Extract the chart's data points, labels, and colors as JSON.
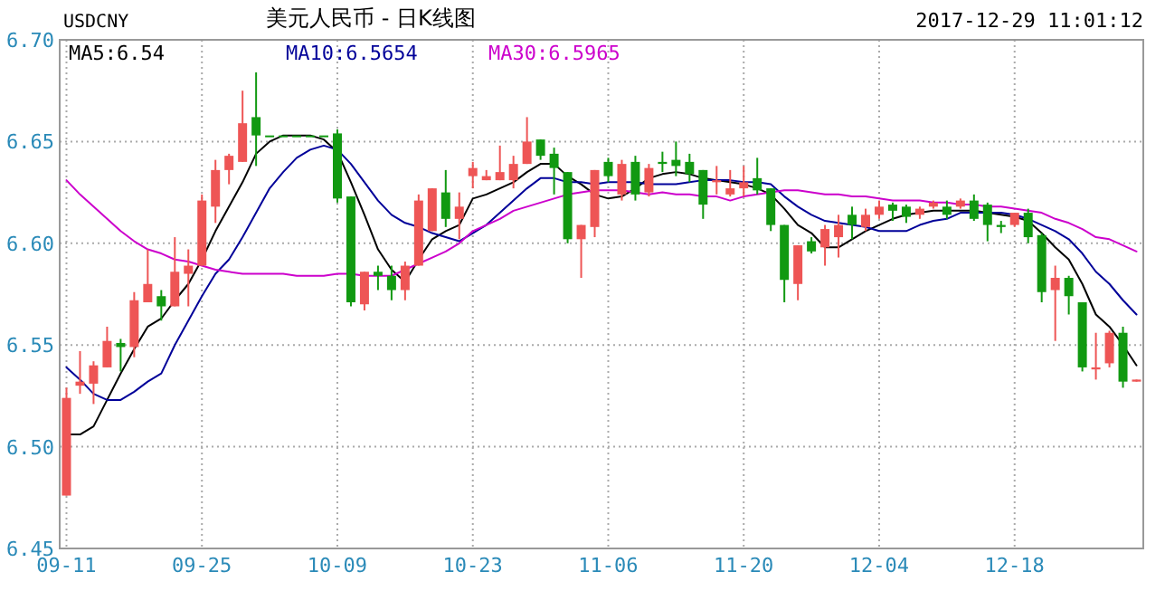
{
  "chart_data": {
    "type": "candlestick",
    "title": "美元人民币 - 日K线图",
    "annotations": [
      "USDCNY",
      "2017-12-29 11:01:12"
    ],
    "categories": [
      "09-11",
      null,
      null,
      null,
      null,
      null,
      null,
      null,
      null,
      null,
      "09-25",
      null,
      null,
      null,
      null,
      null,
      null,
      null,
      null,
      null,
      "10-09",
      null,
      null,
      null,
      null,
      null,
      null,
      null,
      null,
      null,
      "10-23",
      null,
      null,
      null,
      null,
      null,
      null,
      null,
      null,
      null,
      "11-06",
      null,
      null,
      null,
      null,
      null,
      null,
      null,
      null,
      null,
      "11-20",
      null,
      null,
      null,
      null,
      null,
      null,
      null,
      null,
      null,
      "12-04",
      null,
      null,
      null,
      null,
      null,
      null,
      null,
      null,
      null,
      "12-18",
      null,
      null,
      null,
      null,
      null,
      null,
      null,
      null,
      null
    ],
    "ohlc": [
      [
        6.476,
        6.529,
        6.476,
        6.524
      ],
      [
        6.53,
        6.547,
        6.526,
        6.532
      ],
      [
        6.531,
        6.542,
        6.521,
        6.54
      ],
      [
        6.539,
        6.559,
        6.539,
        6.552
      ],
      [
        6.551,
        6.553,
        6.537,
        6.549
      ],
      [
        6.549,
        6.576,
        6.544,
        6.572
      ],
      [
        6.571,
        6.597,
        6.571,
        6.58
      ],
      [
        6.574,
        6.577,
        6.562,
        6.569
      ],
      [
        6.569,
        6.603,
        6.569,
        6.586
      ],
      [
        6.585,
        6.597,
        6.569,
        6.589
      ],
      [
        6.589,
        6.624,
        6.589,
        6.621
      ],
      [
        6.618,
        6.641,
        6.61,
        6.636
      ],
      [
        6.636,
        6.644,
        6.629,
        6.643
      ],
      [
        6.64,
        6.675,
        6.64,
        6.659
      ],
      [
        6.662,
        6.684,
        6.638,
        6.653
      ],
      [
        6.653,
        6.653,
        6.653,
        6.653
      ],
      [
        6.653,
        6.653,
        6.653,
        6.653
      ],
      [
        6.653,
        6.653,
        6.653,
        6.653
      ],
      [
        6.653,
        6.653,
        6.653,
        6.653
      ],
      [
        6.653,
        6.653,
        6.653,
        6.653
      ],
      [
        6.654,
        6.656,
        6.62,
        6.622
      ],
      [
        6.623,
        6.623,
        6.569,
        6.571
      ],
      [
        6.57,
        6.586,
        6.567,
        6.586
      ],
      [
        6.586,
        6.589,
        6.577,
        6.584
      ],
      [
        6.584,
        6.589,
        6.572,
        6.577
      ],
      [
        6.577,
        6.591,
        6.572,
        6.589
      ],
      [
        6.589,
        6.624,
        6.589,
        6.621
      ],
      [
        6.606,
        6.627,
        6.606,
        6.627
      ],
      [
        6.625,
        6.636,
        6.608,
        6.612
      ],
      [
        6.612,
        6.625,
        6.602,
        6.618
      ],
      [
        6.633,
        6.64,
        6.627,
        6.637
      ],
      [
        6.631,
        6.636,
        6.631,
        6.633
      ],
      [
        6.631,
        6.648,
        6.631,
        6.635
      ],
      [
        6.631,
        6.643,
        6.627,
        6.639
      ],
      [
        6.639,
        6.662,
        6.639,
        6.65
      ],
      [
        6.651,
        6.651,
        6.641,
        6.643
      ],
      [
        6.644,
        6.647,
        6.624,
        6.637
      ],
      [
        6.635,
        6.635,
        6.6,
        6.602
      ],
      [
        6.602,
        6.609,
        6.583,
        6.609
      ],
      [
        6.608,
        6.636,
        6.603,
        6.636
      ],
      [
        6.64,
        6.642,
        6.63,
        6.633
      ],
      [
        6.624,
        6.641,
        6.621,
        6.639
      ],
      [
        6.64,
        6.643,
        6.621,
        6.624
      ],
      [
        6.625,
        6.639,
        6.623,
        6.637
      ],
      [
        6.64,
        6.645,
        6.635,
        6.639
      ],
      [
        6.641,
        6.65,
        6.633,
        6.638
      ],
      [
        6.64,
        6.644,
        6.63,
        6.634
      ],
      [
        6.636,
        6.636,
        6.612,
        6.619
      ],
      [
        6.63,
        6.638,
        6.624,
        6.631
      ],
      [
        6.624,
        6.636,
        6.623,
        6.627
      ],
      [
        6.627,
        6.638,
        6.623,
        6.63
      ],
      [
        6.632,
        6.642,
        6.624,
        6.626
      ],
      [
        6.627,
        6.627,
        6.606,
        6.609
      ],
      [
        6.609,
        6.609,
        6.571,
        6.582
      ],
      [
        6.58,
        6.599,
        6.572,
        6.599
      ],
      [
        6.601,
        6.603,
        6.595,
        6.596
      ],
      [
        6.598,
        6.609,
        6.589,
        6.607
      ],
      [
        6.603,
        6.614,
        6.593,
        6.609
      ],
      [
        6.614,
        6.618,
        6.602,
        6.609
      ],
      [
        6.608,
        6.617,
        6.606,
        6.614
      ],
      [
        6.614,
        6.621,
        6.612,
        6.618
      ],
      [
        6.619,
        6.62,
        6.611,
        6.616
      ],
      [
        6.618,
        6.619,
        6.61,
        6.613
      ],
      [
        6.614,
        6.618,
        6.612,
        6.617
      ],
      [
        6.618,
        6.621,
        6.617,
        6.62
      ],
      [
        6.618,
        6.621,
        6.612,
        6.614
      ],
      [
        6.618,
        6.622,
        6.617,
        6.621
      ],
      [
        6.621,
        6.624,
        6.611,
        6.612
      ],
      [
        6.619,
        6.62,
        6.601,
        6.609
      ],
      [
        6.609,
        6.611,
        6.605,
        6.608
      ],
      [
        6.609,
        6.615,
        6.608,
        6.615
      ],
      [
        6.615,
        6.617,
        6.6,
        6.603
      ],
      [
        6.604,
        6.605,
        6.571,
        6.576
      ],
      [
        6.577,
        6.589,
        6.552,
        6.583
      ],
      [
        6.583,
        6.584,
        6.565,
        6.574
      ],
      [
        6.571,
        6.571,
        6.537,
        6.539
      ],
      [
        6.538,
        6.556,
        6.533,
        6.539
      ],
      [
        6.541,
        6.557,
        6.539,
        6.556
      ],
      [
        6.556,
        6.559,
        6.529,
        6.532
      ],
      [
        6.532,
        6.533,
        6.532,
        6.533
      ]
    ],
    "colors": [
      "#ee5555",
      "#ee5555",
      "#ee5555",
      "#ee5555",
      "#119911",
      "#ee5555",
      "#ee5555",
      "#119911",
      "#ee5555",
      "#ee5555",
      "#ee5555",
      "#ee5555",
      "#ee5555",
      "#ee5555",
      "#119911",
      "#119911",
      "#119911",
      "#119911",
      "#119911",
      "#119911",
      "#119911",
      "#119911",
      "#ee5555",
      "#119911",
      "#119911",
      "#ee5555",
      "#ee5555",
      "#ee5555",
      "#119911",
      "#ee5555",
      "#ee5555",
      "#ee5555",
      "#ee5555",
      "#ee5555",
      "#ee5555",
      "#119911",
      "#119911",
      "#119911",
      "#ee5555",
      "#ee5555",
      "#119911",
      "#ee5555",
      "#119911",
      "#ee5555",
      "#119911",
      "#119911",
      "#119911",
      "#119911",
      "#ee5555",
      "#ee5555",
      "#ee5555",
      "#119911",
      "#119911",
      "#119911",
      "#ee5555",
      "#119911",
      "#ee5555",
      "#ee5555",
      "#119911",
      "#ee5555",
      "#ee5555",
      "#119911",
      "#119911",
      "#ee5555",
      "#ee5555",
      "#119911",
      "#ee5555",
      "#119911",
      "#119911",
      "#119911",
      "#ee5555",
      "#119911",
      "#119911",
      "#ee5555",
      "#119911",
      "#119911",
      "#ee5555",
      "#ee5555",
      "#119911",
      "#ee5555"
    ],
    "series": [
      {
        "name": "MA5:6.54",
        "color": "#000000",
        "type": "line",
        "values": [
          6.506,
          6.506,
          6.51,
          6.523,
          6.536,
          6.548,
          6.559,
          6.563,
          6.572,
          6.58,
          6.592,
          6.606,
          6.618,
          6.63,
          6.644,
          6.65,
          6.653,
          6.653,
          6.653,
          6.651,
          6.645,
          6.63,
          6.614,
          6.597,
          6.587,
          6.581,
          6.592,
          6.602,
          6.606,
          6.609,
          6.622,
          6.624,
          6.627,
          6.63,
          6.635,
          6.639,
          6.639,
          6.633,
          6.629,
          6.624,
          6.622,
          6.623,
          6.627,
          6.632,
          6.634,
          6.635,
          6.634,
          6.632,
          6.631,
          6.63,
          6.629,
          6.627,
          6.624,
          6.617,
          6.609,
          6.605,
          6.598,
          6.598,
          6.602,
          6.606,
          6.609,
          6.612,
          6.614,
          6.615,
          6.616,
          6.616,
          6.616,
          6.616,
          6.615,
          6.614,
          6.613,
          6.611,
          6.605,
          6.598,
          6.592,
          6.58,
          6.565,
          6.559,
          6.55,
          6.54
        ]
      },
      {
        "name": "MA10:6.5654",
        "color": "#000099",
        "type": "line",
        "values": [
          6.539,
          6.533,
          6.526,
          6.523,
          6.523,
          6.527,
          6.532,
          6.536,
          6.55,
          6.562,
          6.574,
          6.585,
          6.592,
          6.603,
          6.615,
          6.627,
          6.635,
          6.642,
          6.646,
          6.648,
          6.646,
          6.639,
          6.63,
          6.621,
          6.614,
          6.61,
          6.608,
          6.605,
          6.603,
          6.601,
          6.605,
          6.609,
          6.615,
          6.621,
          6.627,
          6.632,
          6.632,
          6.63,
          6.63,
          6.629,
          6.63,
          6.63,
          6.63,
          6.629,
          6.629,
          6.629,
          6.63,
          6.631,
          6.631,
          6.631,
          6.63,
          6.63,
          6.629,
          6.623,
          6.618,
          6.614,
          6.611,
          6.61,
          6.609,
          6.608,
          6.606,
          6.606,
          6.606,
          6.609,
          6.611,
          6.612,
          6.615,
          6.615,
          6.615,
          6.615,
          6.614,
          6.612,
          6.609,
          6.606,
          6.602,
          6.595,
          6.586,
          6.58,
          6.572,
          6.565
        ]
      },
      {
        "name": "MA30:6.5965",
        "color": "#cc00cc",
        "type": "line",
        "values": [
          6.631,
          6.624,
          6.618,
          6.612,
          6.606,
          6.601,
          6.597,
          6.595,
          6.592,
          6.591,
          6.589,
          6.587,
          6.586,
          6.585,
          6.585,
          6.585,
          6.585,
          6.584,
          6.584,
          6.584,
          6.585,
          6.585,
          6.584,
          6.584,
          6.584,
          6.587,
          6.59,
          6.593,
          6.596,
          6.6,
          6.606,
          6.609,
          6.612,
          6.616,
          6.618,
          6.62,
          6.622,
          6.624,
          6.625,
          6.626,
          6.626,
          6.626,
          6.625,
          6.624,
          6.625,
          6.624,
          6.624,
          6.623,
          6.623,
          6.621,
          6.623,
          6.624,
          6.625,
          6.626,
          6.626,
          6.625,
          6.624,
          6.624,
          6.623,
          6.623,
          6.622,
          6.621,
          6.621,
          6.621,
          6.62,
          6.62,
          6.619,
          6.619,
          6.618,
          6.618,
          6.617,
          6.616,
          6.615,
          6.612,
          6.61,
          6.607,
          6.603,
          6.602,
          6.599,
          6.596
        ]
      }
    ],
    "ylim": [
      6.45,
      6.7
    ],
    "yticks": [
      6.45,
      {
        "value": 6.5,
        "label": "6.50"
      },
      6.55,
      {
        "value": 6.6,
        "label": "6.60"
      },
      6.65,
      {
        "value": 6.7,
        "label": "6.70"
      }
    ],
    "grid": true,
    "legend": "top left"
  }
}
